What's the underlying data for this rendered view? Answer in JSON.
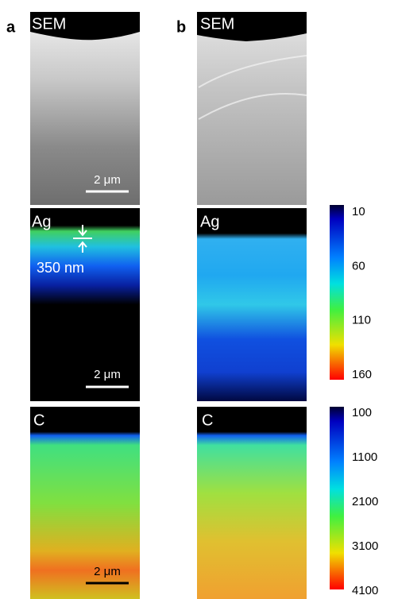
{
  "panels": [
    {
      "label": "a",
      "images": [
        {
          "label": "SEM",
          "scale_bar": "2 μm"
        },
        {
          "label": "Ag",
          "scale_bar": "2 μm",
          "annotation": "350 nm"
        },
        {
          "label": "C",
          "scale_bar": "2 μm"
        }
      ]
    },
    {
      "label": "b",
      "images": [
        {
          "label": "SEM"
        },
        {
          "label": "Ag"
        },
        {
          "label": "C"
        }
      ]
    }
  ],
  "colorbars": [
    {
      "ticks": [
        10,
        60,
        110,
        160
      ]
    },
    {
      "ticks": [
        100,
        1100,
        2100,
        3100,
        4100
      ]
    }
  ]
}
